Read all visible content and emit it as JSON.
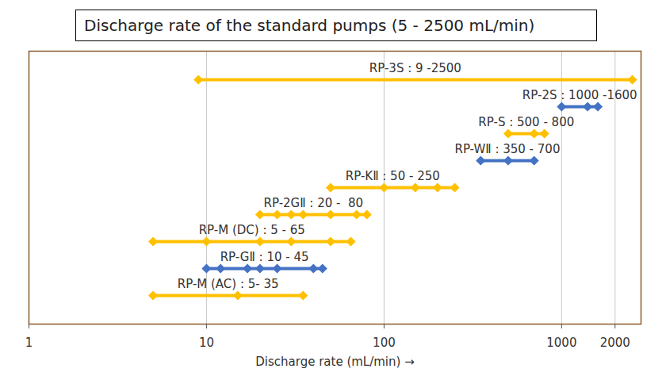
{
  "chart_data": {
    "type": "range",
    "title": "Discharge rate of the standard pumps (5 - 2500 mL/min)",
    "x_label": "Discharge rate (mL/min)",
    "orientation": "horizontal",
    "log": "x",
    "xlim": [
      1,
      2800
    ],
    "xticks": [
      1,
      10,
      100,
      1000,
      2000
    ],
    "grid": true,
    "tick_labels": "x",
    "marker": "diamond",
    "categories": [
      "RP-3S : 9 -2500",
      "RP-2S : 1000 -1600",
      "RP-S : 500 - 800",
      "RP-WⅡ : 350 - 700",
      "RP-KⅡ : 50 - 250",
      "RP-2GⅡ : 20 -  80",
      "RP-M (DC) : 5 - 65",
      "RP-GⅡ : 10 - 45",
      "RP-M (AC) : 5- 35"
    ],
    "values": [
      [
        9,
        2500
      ],
      [
        1000,
        1400,
        1600
      ],
      [
        500,
        700,
        800
      ],
      [
        350,
        500,
        700
      ],
      [
        50,
        100,
        150,
        200,
        250
      ],
      [
        20,
        25,
        30,
        35,
        50,
        70,
        80
      ],
      [
        5,
        10,
        20,
        30,
        50,
        65
      ],
      [
        10,
        12,
        17,
        20,
        25,
        40,
        45
      ],
      [
        5,
        15,
        35
      ]
    ],
    "colors": [
      "#FFC000",
      "#4472C4",
      "#FFC000",
      "#4472C4",
      "#FFC000",
      "#FFC000",
      "#FFC000",
      "#4472C4",
      "#FFC000"
    ]
  }
}
